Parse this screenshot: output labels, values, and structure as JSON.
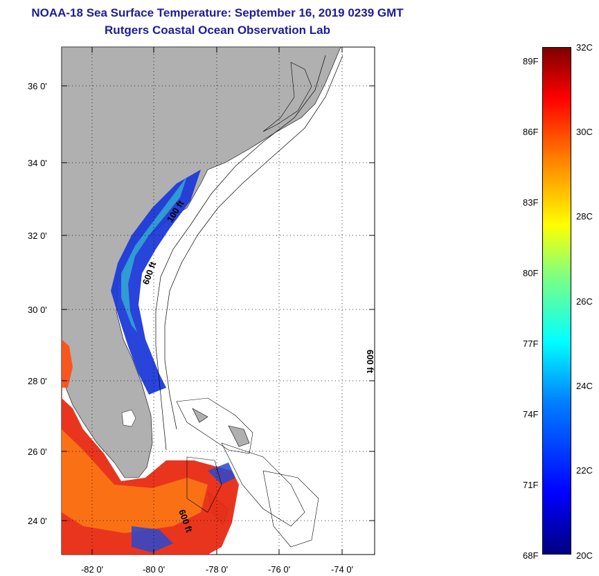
{
  "header": {
    "title": "NOAA-18 Sea Surface Temperature:  September 16, 2019 0239 GMT",
    "subtitle": "Rutgers Coastal Ocean Observation Lab"
  },
  "map": {
    "lat_ticks": [
      "36 0'",
      "34 0'",
      "32 0'",
      "30 0'",
      "28 0'",
      "26 0'",
      "24 0'"
    ],
    "lon_ticks": [
      "-82 0'",
      "-80 0'",
      "-78 0'",
      "-76 0'",
      "-74 0'"
    ],
    "isobath_labels": [
      "100 ft",
      "600 ft",
      "600 ft",
      "600 ft"
    ],
    "colors": {
      "land": "#b0b0b0",
      "title": "#1c1c99"
    }
  },
  "colorbar": {
    "fahrenheit": [
      "89F",
      "86F",
      "83F",
      "80F",
      "77F",
      "74F",
      "71F",
      "68F"
    ],
    "celsius": [
      "32C",
      "30C",
      "28C",
      "26C",
      "24C",
      "22C",
      "20C"
    ]
  }
}
